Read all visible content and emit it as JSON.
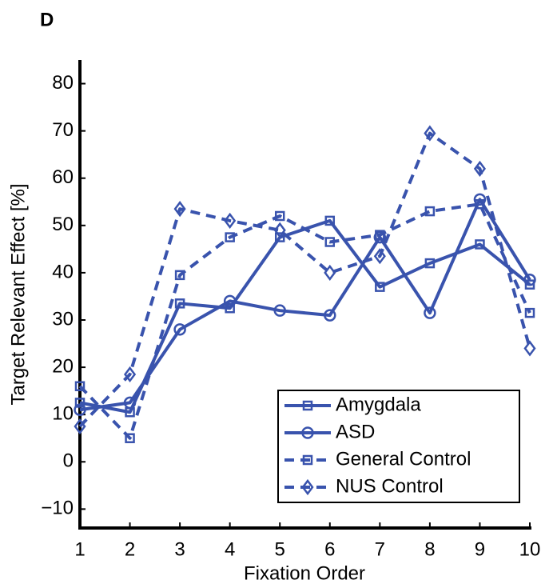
{
  "chart_data": {
    "type": "line",
    "panel_label": "D",
    "x_label": "Fixation Order",
    "y_label": "Target Relevant Effect [%]",
    "x": [
      1,
      2,
      3,
      4,
      5,
      6,
      7,
      8,
      9,
      10
    ],
    "xlim": [
      1,
      10
    ],
    "xticks": [
      1,
      2,
      3,
      4,
      5,
      6,
      7,
      8,
      9,
      10
    ],
    "ylim": [
      -14,
      85
    ],
    "yticks": [
      {
        "value": -10,
        "label": "−10"
      },
      0,
      10,
      20,
      30,
      40,
      50,
      60,
      70,
      80
    ],
    "grid": false,
    "legend_position": "lower-right",
    "series": [
      {
        "name": "Amygdala",
        "color": "#3953ad",
        "dash": false,
        "marker": "square",
        "values": [
          12.5,
          10.5,
          33.5,
          32.5,
          47.5,
          51,
          37,
          42,
          46,
          37.5
        ]
      },
      {
        "name": "ASD",
        "color": "#3953ad",
        "dash": false,
        "marker": "circle",
        "values": [
          11,
          12.5,
          28,
          34,
          32,
          31,
          47.5,
          31.5,
          55.5,
          38.5
        ]
      },
      {
        "name": "General Control",
        "color": "#3953ad",
        "dash": true,
        "marker": "square",
        "values": [
          16,
          5,
          39.5,
          47.5,
          52,
          46.5,
          48,
          53,
          54.5,
          31.5
        ]
      },
      {
        "name": "NUS Control",
        "color": "#3953ad",
        "dash": true,
        "marker": "diamond",
        "values": [
          7.5,
          18.5,
          53.5,
          51,
          49,
          40,
          43.5,
          69.5,
          62,
          24
        ]
      }
    ]
  }
}
